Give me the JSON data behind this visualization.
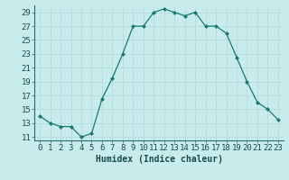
{
  "x": [
    0,
    1,
    2,
    3,
    4,
    5,
    6,
    7,
    8,
    9,
    10,
    11,
    12,
    13,
    14,
    15,
    16,
    17,
    18,
    19,
    20,
    21,
    22,
    23
  ],
  "y": [
    14,
    13,
    12.5,
    12.5,
    11,
    11.5,
    16.5,
    19.5,
    23,
    27,
    27,
    29,
    29.5,
    29,
    28.5,
    29,
    27,
    27,
    26,
    22.5,
    19,
    16,
    15,
    13.5
  ],
  "line_color": "#1a7a6e",
  "marker_color": "#1a7a6e",
  "bg_color": "#c8ecec",
  "grid_color": "#b0d8d8",
  "xlabel": "Humidex (Indice chaleur)",
  "xlabel_fontsize": 7.0,
  "tick_fontsize": 6.5,
  "xlim": [
    -0.5,
    23.5
  ],
  "ylim": [
    10.5,
    30.0
  ],
  "yticks": [
    11,
    13,
    15,
    17,
    19,
    21,
    23,
    25,
    27,
    29
  ],
  "xticks": [
    0,
    1,
    2,
    3,
    4,
    5,
    6,
    7,
    8,
    9,
    10,
    11,
    12,
    13,
    14,
    15,
    16,
    17,
    18,
    19,
    20,
    21,
    22,
    23
  ]
}
